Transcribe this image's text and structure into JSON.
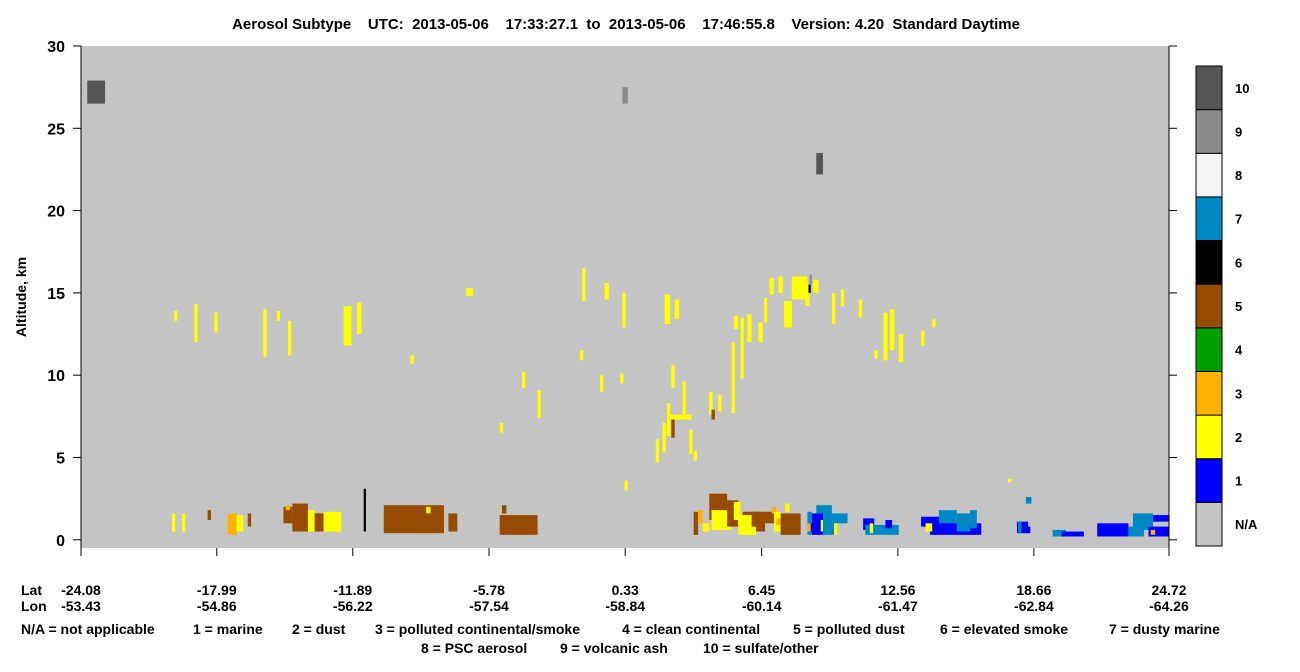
{
  "chart_data": {
    "type": "heatmap",
    "title": "Aerosol Subtype    UTC:  2013-05-06    17:33:27.1  to  2013-05-06    17:46:55.8    Version: 4.20  Standard Daytime",
    "ylabel": "Altitude, km",
    "ylim": [
      -0.5,
      30
    ],
    "yticks": [
      "0",
      "5",
      "10",
      "15",
      "20",
      "25",
      "30"
    ],
    "x_rows": [
      {
        "label": "Lat",
        "values": [
          "-24.08",
          "-17.99",
          "-11.89",
          "-5.78",
          "0.33",
          "6.45",
          "12.56",
          "18.66",
          "24.72"
        ]
      },
      {
        "label": "Lon",
        "values": [
          "-53.43",
          "-54.86",
          "-56.22",
          "-57.54",
          "-58.84",
          "-60.14",
          "-61.47",
          "-62.84",
          "-64.26"
        ]
      }
    ],
    "colorbar": [
      {
        "label": "N/A",
        "color": "#c4c4c4"
      },
      {
        "label": "1",
        "color": "#0000ff"
      },
      {
        "label": "2",
        "color": "#ffff00"
      },
      {
        "label": "3",
        "color": "#ffb000"
      },
      {
        "label": "4",
        "color": "#00a000"
      },
      {
        "label": "5",
        "color": "#964b00"
      },
      {
        "label": "6",
        "color": "#000000"
      },
      {
        "label": "7",
        "color": "#0088c4"
      },
      {
        "label": "8",
        "color": "#f4f4f4"
      },
      {
        "label": "9",
        "color": "#8c8c8c"
      },
      {
        "label": "10",
        "color": "#555555"
      }
    ],
    "legend_lines": [
      [
        "N/A = not applicable",
        "1 = marine",
        "2 = dust",
        "3 = polluted continental/smoke",
        "4 = clean continental",
        "5 = polluted dust",
        "6 = elevated smoke",
        "7 = dusty marine"
      ],
      [
        "8 = PSC aerosol",
        "9 = volcanic ash",
        "10 = sulfate/other"
      ]
    ],
    "background_category": "N/A",
    "features": [
      {
        "cat": 10,
        "lat0": -23.8,
        "lat1": -23.0,
        "alt0": 26.5,
        "alt1": 27.9
      },
      {
        "cat": 9,
        "lat0": 0.2,
        "lat1": 0.45,
        "alt0": 26.5,
        "alt1": 27.5
      },
      {
        "cat": 10,
        "lat0": 8.9,
        "lat1": 9.2,
        "alt0": 22.2,
        "alt1": 23.5
      },
      {
        "cat": 2,
        "lat0": -19.9,
        "lat1": -19.75,
        "alt0": 13.3,
        "alt1": 13.9
      },
      {
        "cat": 2,
        "lat0": -19.0,
        "lat1": -18.85,
        "alt0": 12.0,
        "alt1": 14.3
      },
      {
        "cat": 2,
        "lat0": -18.1,
        "lat1": -17.95,
        "alt0": 12.6,
        "alt1": 13.8
      },
      {
        "cat": 2,
        "lat0": -15.9,
        "lat1": -15.75,
        "alt0": 11.1,
        "alt1": 14.0
      },
      {
        "cat": 2,
        "lat0": -15.3,
        "lat1": -15.15,
        "alt0": 13.3,
        "alt1": 13.9
      },
      {
        "cat": 2,
        "lat0": -14.8,
        "lat1": -14.65,
        "alt0": 11.2,
        "alt1": 13.3
      },
      {
        "cat": 2,
        "lat0": -12.3,
        "lat1": -11.95,
        "alt0": 11.8,
        "alt1": 14.2
      },
      {
        "cat": 2,
        "lat0": -11.7,
        "lat1": -11.5,
        "alt0": 12.5,
        "alt1": 14.4
      },
      {
        "cat": 2,
        "lat0": -9.3,
        "lat1": -9.15,
        "alt0": 10.7,
        "alt1": 11.2
      },
      {
        "cat": 2,
        "lat0": -6.8,
        "lat1": -6.5,
        "alt0": 14.8,
        "alt1": 15.3
      },
      {
        "cat": 2,
        "lat0": -5.3,
        "lat1": -5.15,
        "alt0": 6.5,
        "alt1": 7.1
      },
      {
        "cat": 2,
        "lat0": -4.3,
        "lat1": -4.15,
        "alt0": 9.2,
        "alt1": 10.2
      },
      {
        "cat": 2,
        "lat0": -3.6,
        "lat1": -3.45,
        "alt0": 7.4,
        "alt1": 9.1
      },
      {
        "cat": 2,
        "lat0": -1.6,
        "lat1": -1.45,
        "alt0": 14.5,
        "alt1": 16.5
      },
      {
        "cat": 2,
        "lat0": -1.7,
        "lat1": -1.55,
        "alt0": 10.9,
        "alt1": 11.5
      },
      {
        "cat": 2,
        "lat0": -0.6,
        "lat1": -0.4,
        "alt0": 14.6,
        "alt1": 15.6
      },
      {
        "cat": 2,
        "lat0": -0.8,
        "lat1": -0.65,
        "alt0": 9.0,
        "alt1": 10.0
      },
      {
        "cat": 2,
        "lat0": 0.2,
        "lat1": 0.35,
        "alt0": 12.9,
        "alt1": 15.0
      },
      {
        "cat": 2,
        "lat0": 0.1,
        "lat1": 0.25,
        "alt0": 9.5,
        "alt1": 10.1
      },
      {
        "cat": 2,
        "lat0": 2.1,
        "lat1": 2.35,
        "alt0": 13.1,
        "alt1": 14.9
      },
      {
        "cat": 2,
        "lat0": 2.55,
        "lat1": 2.75,
        "alt0": 13.4,
        "alt1": 14.6
      },
      {
        "cat": 2,
        "lat0": 1.7,
        "lat1": 1.85,
        "alt0": 4.7,
        "alt1": 6.1
      },
      {
        "cat": 2,
        "lat0": 2.0,
        "lat1": 2.15,
        "alt0": 5.3,
        "alt1": 7.1
      },
      {
        "cat": 2,
        "lat0": 2.2,
        "lat1": 2.35,
        "alt0": 6.3,
        "alt1": 8.3
      },
      {
        "cat": 2,
        "lat0": 2.4,
        "lat1": 2.55,
        "alt0": 9.2,
        "alt1": 10.6
      },
      {
        "cat": 2,
        "lat0": 2.3,
        "lat1": 3.3,
        "alt0": 7.3,
        "alt1": 7.6
      },
      {
        "cat": 5,
        "lat0": 2.4,
        "lat1": 2.55,
        "alt0": 6.2,
        "alt1": 7.3
      },
      {
        "cat": 2,
        "lat0": 2.9,
        "lat1": 3.05,
        "alt0": 7.6,
        "alt1": 9.6
      },
      {
        "cat": 2,
        "lat0": 3.2,
        "lat1": 3.35,
        "alt0": 5.2,
        "alt1": 6.7
      },
      {
        "cat": 2,
        "lat0": 4.1,
        "lat1": 4.25,
        "alt0": 7.6,
        "alt1": 9.0
      },
      {
        "cat": 5,
        "lat0": 4.2,
        "lat1": 4.35,
        "alt0": 7.3,
        "alt1": 7.9
      },
      {
        "cat": 2,
        "lat0": 4.5,
        "lat1": 4.65,
        "alt0": 7.8,
        "alt1": 8.8
      },
      {
        "cat": 2,
        "lat0": 5.1,
        "lat1": 5.25,
        "alt0": 7.7,
        "alt1": 12.0
      },
      {
        "cat": 2,
        "lat0": 5.2,
        "lat1": 5.4,
        "alt0": 12.8,
        "alt1": 13.6
      },
      {
        "cat": 2,
        "lat0": 5.5,
        "lat1": 5.65,
        "alt0": 9.8,
        "alt1": 13.5
      },
      {
        "cat": 2,
        "lat0": 5.8,
        "lat1": 6.0,
        "alt0": 12.0,
        "alt1": 13.7
      },
      {
        "cat": 2,
        "lat0": 6.3,
        "lat1": 6.5,
        "alt0": 12.0,
        "alt1": 13.2
      },
      {
        "cat": 2,
        "lat0": 6.55,
        "lat1": 6.7,
        "alt0": 13.2,
        "alt1": 14.7
      },
      {
        "cat": 2,
        "lat0": 6.8,
        "lat1": 7.0,
        "alt0": 14.9,
        "alt1": 15.9
      },
      {
        "cat": 2,
        "lat0": 7.2,
        "lat1": 7.4,
        "alt0": 15.0,
        "alt1": 16.0
      },
      {
        "cat": 2,
        "lat0": 7.45,
        "lat1": 7.8,
        "alt0": 12.9,
        "alt1": 14.5
      },
      {
        "cat": 2,
        "lat0": 7.8,
        "lat1": 8.5,
        "alt0": 14.6,
        "alt1": 16.0
      },
      {
        "cat": 2,
        "lat0": 8.4,
        "lat1": 8.6,
        "alt0": 14.2,
        "alt1": 15.5
      },
      {
        "cat": 6,
        "lat0": 8.55,
        "lat1": 8.65,
        "alt0": 15.0,
        "alt1": 15.5
      },
      {
        "cat": 9,
        "lat0": 8.6,
        "lat1": 8.7,
        "alt0": 15.5,
        "alt1": 16.1
      },
      {
        "cat": 2,
        "lat0": 8.75,
        "lat1": 9.0,
        "alt0": 15.0,
        "alt1": 15.8
      },
      {
        "cat": 2,
        "lat0": 9.6,
        "lat1": 9.75,
        "alt0": 13.1,
        "alt1": 15.0
      },
      {
        "cat": 2,
        "lat0": 10.0,
        "lat1": 10.15,
        "alt0": 14.2,
        "alt1": 15.2
      },
      {
        "cat": 2,
        "lat0": 10.8,
        "lat1": 10.95,
        "alt0": 13.5,
        "alt1": 14.6
      },
      {
        "cat": 2,
        "lat0": 11.9,
        "lat1": 12.1,
        "alt0": 10.9,
        "alt1": 13.8
      },
      {
        "cat": 2,
        "lat0": 12.2,
        "lat1": 12.4,
        "alt0": 11.5,
        "alt1": 14.0
      },
      {
        "cat": 2,
        "lat0": 11.5,
        "lat1": 11.65,
        "alt0": 11.0,
        "alt1": 11.5
      },
      {
        "cat": 2,
        "lat0": 12.6,
        "lat1": 12.8,
        "alt0": 10.8,
        "alt1": 12.5
      },
      {
        "cat": 2,
        "lat0": 13.6,
        "lat1": 13.75,
        "alt0": 11.8,
        "alt1": 12.7
      },
      {
        "cat": 2,
        "lat0": 14.1,
        "lat1": 14.25,
        "alt0": 12.9,
        "alt1": 13.4
      },
      {
        "cat": 2,
        "lat0": 0.3,
        "lat1": 0.45,
        "alt0": 3.0,
        "alt1": 3.6
      },
      {
        "cat": 2,
        "lat0": 3.4,
        "lat1": 3.55,
        "alt0": 4.8,
        "alt1": 5.4
      },
      {
        "cat": 2,
        "lat0": 17.5,
        "lat1": 17.65,
        "alt0": 3.5,
        "alt1": 3.7
      },
      {
        "cat": 2,
        "lat0": -20.0,
        "lat1": -19.85,
        "alt0": 0.5,
        "alt1": 1.6
      },
      {
        "cat": 2,
        "lat0": -19.55,
        "lat1": -19.4,
        "alt0": 0.5,
        "alt1": 1.6
      },
      {
        "cat": 5,
        "lat0": -18.4,
        "lat1": -18.25,
        "alt0": 1.2,
        "alt1": 1.8
      },
      {
        "cat": 3,
        "lat0": -17.5,
        "lat1": -17.1,
        "alt0": 0.3,
        "alt1": 1.6
      },
      {
        "cat": 2,
        "lat0": -17.1,
        "lat1": -16.8,
        "alt0": 0.5,
        "alt1": 1.5
      },
      {
        "cat": 5,
        "lat0": -16.6,
        "lat1": -16.45,
        "alt0": 0.8,
        "alt1": 1.6
      },
      {
        "cat": 5,
        "lat0": -15.0,
        "lat1": -14.6,
        "alt0": 1.0,
        "alt1": 2.0
      },
      {
        "cat": 3,
        "lat0": -14.9,
        "lat1": -14.7,
        "alt0": 1.8,
        "alt1": 2.1
      },
      {
        "cat": 5,
        "lat0": -14.6,
        "lat1": -13.9,
        "alt0": 0.5,
        "alt1": 2.2
      },
      {
        "cat": 2,
        "lat0": -13.9,
        "lat1": -13.6,
        "alt0": 0.5,
        "alt1": 1.8
      },
      {
        "cat": 5,
        "lat0": -13.6,
        "lat1": -13.2,
        "alt0": 0.5,
        "alt1": 1.6
      },
      {
        "cat": 2,
        "lat0": -13.2,
        "lat1": -12.4,
        "alt0": 0.5,
        "alt1": 1.7
      },
      {
        "cat": 2,
        "lat0": -12.7,
        "lat1": -12.55,
        "alt0": 0.5,
        "alt1": 1.6
      },
      {
        "cat": 6,
        "lat0": -11.4,
        "lat1": -11.3,
        "alt0": 0.5,
        "alt1": 3.1
      },
      {
        "cat": 5,
        "lat0": -10.5,
        "lat1": -7.8,
        "alt0": 0.4,
        "alt1": 2.1
      },
      {
        "cat": 2,
        "lat0": -8.6,
        "lat1": -8.4,
        "alt0": 1.6,
        "alt1": 2.0
      },
      {
        "cat": 5,
        "lat0": -7.6,
        "lat1": -7.2,
        "alt0": 0.5,
        "alt1": 1.6
      },
      {
        "cat": 5,
        "lat0": -5.3,
        "lat1": -3.6,
        "alt0": 0.3,
        "alt1": 1.5
      },
      {
        "cat": 5,
        "lat0": -5.2,
        "lat1": -5.0,
        "alt0": 1.6,
        "alt1": 2.1
      },
      {
        "cat": 5,
        "lat0": 3.4,
        "lat1": 3.6,
        "alt0": 0.3,
        "alt1": 1.7
      },
      {
        "cat": 3,
        "lat0": 3.6,
        "lat1": 3.8,
        "alt0": 1.0,
        "alt1": 1.8
      },
      {
        "cat": 2,
        "lat0": 3.8,
        "lat1": 4.1,
        "alt0": 0.5,
        "alt1": 1.0
      },
      {
        "cat": 5,
        "lat0": 4.1,
        "lat1": 4.9,
        "alt0": 1.2,
        "alt1": 2.8
      },
      {
        "cat": 2,
        "lat0": 4.2,
        "lat1": 5.1,
        "alt0": 0.6,
        "alt1": 1.8
      },
      {
        "cat": 5,
        "lat0": 4.9,
        "lat1": 5.4,
        "alt0": 0.8,
        "alt1": 2.4
      },
      {
        "cat": 2,
        "lat0": 5.2,
        "lat1": 5.5,
        "alt0": 1.2,
        "alt1": 2.3
      },
      {
        "cat": 5,
        "lat0": 5.6,
        "lat1": 6.6,
        "alt0": 0.5,
        "alt1": 1.7
      },
      {
        "cat": 2,
        "lat0": 5.4,
        "lat1": 6.2,
        "alt0": 0.3,
        "alt1": 1.5
      },
      {
        "cat": 5,
        "lat0": 6.0,
        "lat1": 6.6,
        "alt0": 0.8,
        "alt1": 1.7
      },
      {
        "cat": 5,
        "lat0": 6.6,
        "lat1": 7.1,
        "alt0": 1.0,
        "alt1": 1.7
      },
      {
        "cat": 3,
        "lat0": 6.9,
        "lat1": 7.1,
        "alt0": 1.6,
        "alt1": 2.0
      },
      {
        "cat": 2,
        "lat0": 7.0,
        "lat1": 7.3,
        "alt0": 0.5,
        "alt1": 1.7
      },
      {
        "cat": 3,
        "lat0": 7.1,
        "lat1": 7.3,
        "alt0": 0.9,
        "alt1": 1.3
      },
      {
        "cat": 5,
        "lat0": 7.3,
        "lat1": 8.2,
        "alt0": 0.3,
        "alt1": 1.6
      },
      {
        "cat": 2,
        "lat0": 7.5,
        "lat1": 7.7,
        "alt0": 1.7,
        "alt1": 2.2
      },
      {
        "cat": 7,
        "lat0": 8.5,
        "lat1": 8.7,
        "alt0": 0.3,
        "alt1": 1.7
      },
      {
        "cat": 1,
        "lat0": 8.6,
        "lat1": 8.75,
        "alt0": 0.5,
        "alt1": 1.0
      },
      {
        "cat": 3,
        "lat0": 8.5,
        "lat1": 8.65,
        "alt0": 0.5,
        "alt1": 1.0
      },
      {
        "cat": 7,
        "lat0": 8.9,
        "lat1": 9.6,
        "alt0": 1.2,
        "alt1": 2.1
      },
      {
        "cat": 1,
        "lat0": 8.7,
        "lat1": 9.2,
        "alt0": 0.3,
        "alt1": 1.6
      },
      {
        "cat": 2,
        "lat0": 9.1,
        "lat1": 9.3,
        "alt0": 0.5,
        "alt1": 1.2
      },
      {
        "cat": 7,
        "lat0": 9.2,
        "lat1": 9.7,
        "alt0": 0.3,
        "alt1": 1.3
      },
      {
        "cat": 7,
        "lat0": 9.6,
        "lat1": 10.3,
        "alt0": 1.0,
        "alt1": 1.6
      },
      {
        "cat": 2,
        "lat0": 9.7,
        "lat1": 9.85,
        "alt0": 0.3,
        "alt1": 1.0
      },
      {
        "cat": 1,
        "lat0": 11.0,
        "lat1": 11.5,
        "alt0": 0.6,
        "alt1": 1.3
      },
      {
        "cat": 7,
        "lat0": 11.1,
        "lat1": 12.6,
        "alt0": 0.3,
        "alt1": 0.9
      },
      {
        "cat": 2,
        "lat0": 11.3,
        "lat1": 11.45,
        "alt0": 0.4,
        "alt1": 1.0
      },
      {
        "cat": 1,
        "lat0": 12.0,
        "lat1": 12.3,
        "alt0": 0.7,
        "alt1": 1.2
      },
      {
        "cat": 1,
        "lat0": 13.6,
        "lat1": 14.8,
        "alt0": 0.8,
        "alt1": 1.4
      },
      {
        "cat": 7,
        "lat0": 14.4,
        "lat1": 15.2,
        "alt0": 1.0,
        "alt1": 1.8
      },
      {
        "cat": 1,
        "lat0": 14.0,
        "lat1": 16.3,
        "alt0": 0.3,
        "alt1": 1.0
      },
      {
        "cat": 2,
        "lat0": 13.8,
        "lat1": 14.1,
        "alt0": 0.5,
        "alt1": 1.0
      },
      {
        "cat": 7,
        "lat0": 15.2,
        "lat1": 15.8,
        "alt0": 0.5,
        "alt1": 1.6
      },
      {
        "cat": 7,
        "lat0": 15.8,
        "lat1": 16.1,
        "alt0": 0.7,
        "alt1": 1.8
      },
      {
        "cat": 7,
        "lat0": 18.3,
        "lat1": 18.55,
        "alt0": 2.2,
        "alt1": 2.6
      },
      {
        "cat": 1,
        "lat0": 17.9,
        "lat1": 18.4,
        "alt0": 0.4,
        "alt1": 1.1
      },
      {
        "cat": 7,
        "lat0": 17.95,
        "lat1": 18.1,
        "alt0": 0.4,
        "alt1": 1.1
      },
      {
        "cat": 1,
        "lat0": 18.3,
        "lat1": 18.5,
        "alt0": 0.4,
        "alt1": 0.8
      },
      {
        "cat": 7,
        "lat0": 19.5,
        "lat1": 20.1,
        "alt0": 0.2,
        "alt1": 0.6
      },
      {
        "cat": 1,
        "lat0": 19.9,
        "lat1": 20.9,
        "alt0": 0.2,
        "alt1": 0.5
      },
      {
        "cat": 1,
        "lat0": 21.5,
        "lat1": 22.9,
        "alt0": 0.2,
        "alt1": 1.0
      },
      {
        "cat": 7,
        "lat0": 22.9,
        "lat1": 23.6,
        "alt0": 0.2,
        "alt1": 0.8
      },
      {
        "cat": 7,
        "lat0": 23.1,
        "lat1": 24.0,
        "alt0": 0.6,
        "alt1": 1.6
      },
      {
        "cat": 1,
        "lat0": 23.8,
        "lat1": 24.72,
        "alt0": 0.2,
        "alt1": 0.8
      },
      {
        "cat": 1,
        "lat0": 24.0,
        "lat1": 24.72,
        "alt0": 1.1,
        "alt1": 1.5
      },
      {
        "cat": 3,
        "lat0": 23.9,
        "lat1": 24.1,
        "alt0": 0.3,
        "alt1": 0.6
      }
    ]
  }
}
